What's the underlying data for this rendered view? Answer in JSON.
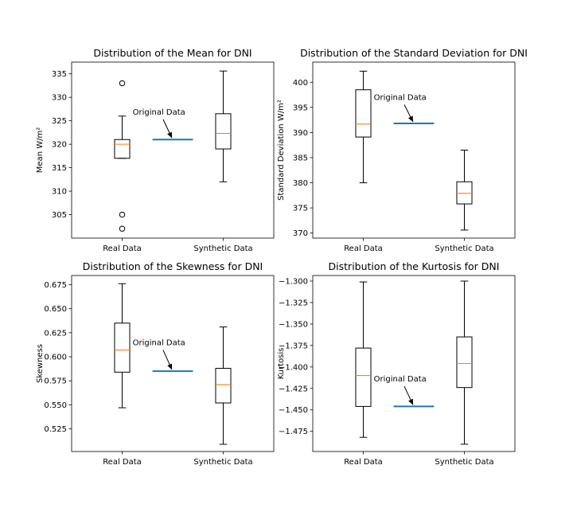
{
  "figure": {
    "background": "#ffffff"
  },
  "colors": {
    "box": "#000000",
    "median": "#ff7f0e",
    "original_line": "#1f77b4",
    "arrow": "#000000"
  },
  "chart_data": [
    {
      "type": "box",
      "title": "Distribution of the Mean for DNI",
      "ylabel": "Mean W/m²",
      "categories": [
        "Real Data",
        "Synthetic Data"
      ],
      "ylim": [
        300,
        337.5
      ],
      "yticks": [
        305,
        310,
        315,
        320,
        325,
        330,
        335
      ],
      "ytick_labels": [
        "305",
        "310",
        "315",
        "320",
        "325",
        "330",
        "335"
      ],
      "boxes": [
        {
          "whisker_low": 317,
          "q1": 317,
          "median": 320,
          "q3": 321,
          "whisker_high": 326,
          "outliers": [
            333,
            305,
            302
          ]
        },
        {
          "whisker_low": 312,
          "q1": 319,
          "median": 322.3,
          "q3": 326.5,
          "whisker_high": 335.6,
          "outliers": []
        }
      ],
      "original": {
        "value": 321,
        "label": "Original Data",
        "text_y": 326.3
      }
    },
    {
      "type": "box",
      "title": "Distribution of the Standard Deviation for DNI",
      "ylabel": "Standard Deviation W/m²",
      "categories": [
        "Real Data",
        "Synthetic Data"
      ],
      "ylim": [
        369,
        404
      ],
      "yticks": [
        370,
        375,
        380,
        385,
        390,
        395,
        400
      ],
      "ytick_labels": [
        "370",
        "375",
        "380",
        "385",
        "390",
        "395",
        "400"
      ],
      "boxes": [
        {
          "whisker_low": 380,
          "q1": 389.1,
          "median": 391.7,
          "q3": 398.5,
          "whisker_high": 402.2,
          "outliers": []
        },
        {
          "whisker_low": 370.6,
          "q1": 375.8,
          "median": 377.9,
          "q3": 380.2,
          "whisker_high": 386.5,
          "outliers": []
        }
      ],
      "original": {
        "value": 391.8,
        "label": "Original Data",
        "text_y": 396.5
      }
    },
    {
      "type": "box",
      "title": "Distribution of the Skewness for DNI",
      "ylabel": "Skewness",
      "categories": [
        "Real Data",
        "Synthetic Data"
      ],
      "ylim": [
        0.5015,
        0.6845
      ],
      "yticks": [
        0.525,
        0.55,
        0.575,
        0.6,
        0.625,
        0.65,
        0.675
      ],
      "ytick_labels": [
        "0.525",
        "0.550",
        "0.575",
        "0.600",
        "0.625",
        "0.650",
        "0.675"
      ],
      "boxes": [
        {
          "whisker_low": 0.547,
          "q1": 0.584,
          "median": 0.607,
          "q3": 0.635,
          "whisker_high": 0.676,
          "outliers": []
        },
        {
          "whisker_low": 0.509,
          "q1": 0.552,
          "median": 0.571,
          "q3": 0.588,
          "whisker_high": 0.631,
          "outliers": []
        }
      ],
      "original": {
        "value": 0.585,
        "label": "Original Data",
        "text_y": 0.612
      }
    },
    {
      "type": "box",
      "title": "Distribution of the Kurtosis for DNI",
      "ylabel": "Kurtosis",
      "categories": [
        "Real Data",
        "Synthetic Data"
      ],
      "ylim": [
        -1.4985,
        -1.2935
      ],
      "yticks": [
        -1.475,
        -1.45,
        -1.425,
        -1.4,
        -1.375,
        -1.35,
        -1.325,
        -1.3
      ],
      "ytick_labels": [
        "−1.475",
        "−1.450",
        "−1.425",
        "−1.400",
        "−1.375",
        "−1.350",
        "−1.325",
        "−1.300"
      ],
      "boxes": [
        {
          "whisker_low": -1.482,
          "q1": -1.446,
          "median": -1.41,
          "q3": -1.378,
          "whisker_high": -1.301,
          "outliers": []
        },
        {
          "whisker_low": -1.49,
          "q1": -1.424,
          "median": -1.396,
          "q3": -1.365,
          "whisker_high": -1.3,
          "outliers": []
        }
      ],
      "original": {
        "value": -1.446,
        "label": "Original Data",
        "text_y": -1.417
      }
    }
  ]
}
